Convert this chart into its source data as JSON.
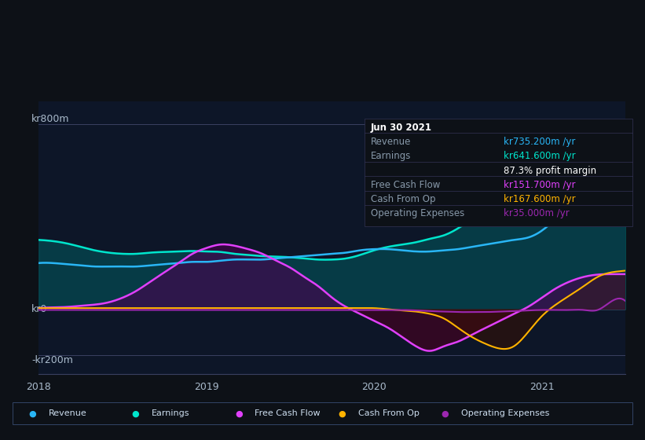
{
  "bg_color": "#0d1117",
  "plot_bg_color": "#0d1628",
  "title_date": "Jun 30 2021",
  "info": {
    "Revenue": {
      "value": "kr735.200m",
      "color": "#00bfff"
    },
    "Earnings": {
      "value": "kr641.600m",
      "color": "#00e5cc"
    },
    "profit_margin": "87.3%",
    "Free Cash Flow": {
      "value": "kr151.700m",
      "color": "#e040fb"
    },
    "Cash From Op": {
      "value": "kr167.600m",
      "color": "#ffb300"
    },
    "Operating Expenses": {
      "value": "kr35.000m",
      "color": "#9c27b0"
    }
  },
  "y_labels": [
    "kr800m",
    "kr0",
    "-kr200m"
  ],
  "y_values": [
    800,
    0,
    -200
  ],
  "x_labels": [
    "2018",
    "2019",
    "2020",
    "2021"
  ],
  "ylim": [
    -280,
    900
  ],
  "xlim": [
    0,
    42
  ],
  "colors": {
    "revenue": "#29b6f6",
    "earnings": "#00e5cc",
    "earnings_fill": "#006064",
    "free_cash_flow": "#e040fb",
    "free_cash_flow_fill": "#4a0030",
    "cash_from_op": "#ffb300",
    "cash_from_op_fill": "#4a2000",
    "op_expenses": "#9c27b0",
    "op_expenses_fill": "#2a0a3a"
  },
  "legend": [
    {
      "label": "Revenue",
      "color": "#29b6f6"
    },
    {
      "label": "Earnings",
      "color": "#00e5cc"
    },
    {
      "label": "Free Cash Flow",
      "color": "#e040fb"
    },
    {
      "label": "Cash From Op",
      "color": "#ffb300"
    },
    {
      "label": "Operating Expenses",
      "color": "#9c27b0"
    }
  ]
}
